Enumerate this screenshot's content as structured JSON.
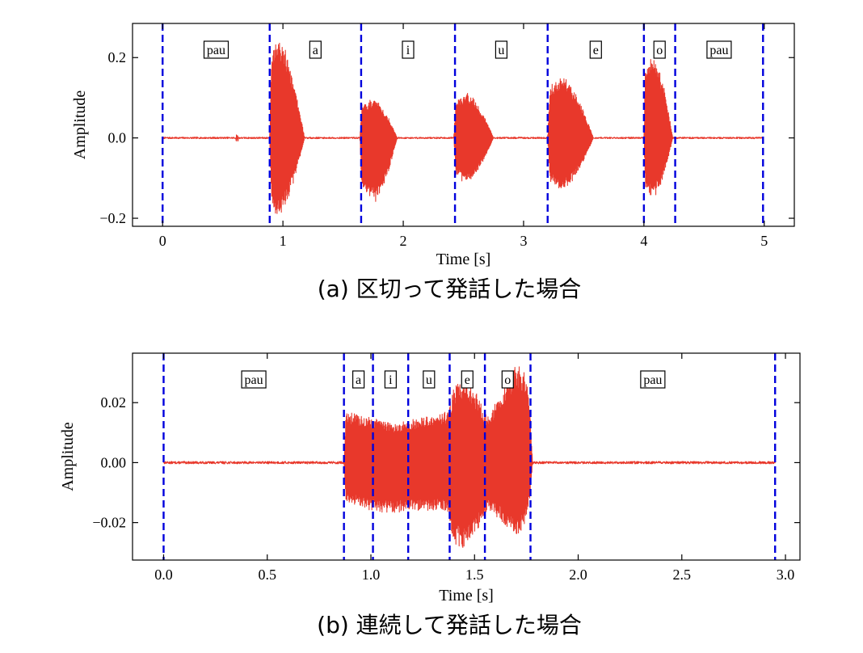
{
  "chart_data": [
    {
      "type": "line",
      "panel": "a",
      "caption": "(a) 区切って発話した場合",
      "xlabel": "Time [s]",
      "ylabel": "Amplitude",
      "xlim": [
        -0.25,
        5.25
      ],
      "ylim": [
        -0.22,
        0.285
      ],
      "xticks": [
        0,
        1,
        2,
        3,
        4,
        5
      ],
      "yticks": [
        -0.2,
        0.0,
        0.2
      ],
      "xtick_labels": [
        "0",
        "1",
        "2",
        "3",
        "4",
        "5"
      ],
      "ytick_labels": [
        "−0.2",
        "0.0",
        "0.2"
      ],
      "grid": false,
      "colors": {
        "waveform": "#e8382b",
        "boundary": "#0000dd"
      },
      "boundaries": [
        0.0,
        0.89,
        1.65,
        2.43,
        3.2,
        4.0,
        4.26,
        4.99
      ],
      "segments": [
        {
          "label": "pau",
          "center": 0.445
        },
        {
          "label": "a",
          "center": 1.27
        },
        {
          "label": "i",
          "center": 2.04
        },
        {
          "label": "u",
          "center": 2.815
        },
        {
          "label": "e",
          "center": 3.6
        },
        {
          "label": "o",
          "center": 4.13
        },
        {
          "label": "pau",
          "center": 4.625
        }
      ],
      "bursts": [
        {
          "start": 0.89,
          "end": 1.18,
          "max": 0.265,
          "min": -0.2,
          "peak": 0.2
        },
        {
          "start": 1.64,
          "end": 1.95,
          "max": 0.1,
          "min": -0.165,
          "peak": 0.35
        },
        {
          "start": 2.42,
          "end": 2.75,
          "max": 0.115,
          "min": -0.115,
          "peak": 0.3
        },
        {
          "start": 3.2,
          "end": 3.58,
          "max": 0.155,
          "min": -0.135,
          "peak": 0.3
        },
        {
          "start": 4.0,
          "end": 4.24,
          "max": 0.21,
          "min": -0.155,
          "peak": 0.3
        }
      ],
      "noise": {
        "amplitude": 0.002,
        "blip_at": 0.62,
        "blip_amplitude": 0.008
      }
    },
    {
      "type": "line",
      "panel": "b",
      "caption": "(b) 連続して発話した場合",
      "xlabel": "Time [s]",
      "ylabel": "Amplitude",
      "xlim": [
        -0.15,
        3.07
      ],
      "ylim": [
        -0.0325,
        0.0365
      ],
      "xticks": [
        0.0,
        0.5,
        1.0,
        1.5,
        2.0,
        2.5,
        3.0
      ],
      "yticks": [
        -0.02,
        0.0,
        0.02
      ],
      "xtick_labels": [
        "0.0",
        "0.5",
        "1.0",
        "1.5",
        "2.0",
        "2.5",
        "3.0"
      ],
      "ytick_labels": [
        "−0.02",
        "0.00",
        "0.02"
      ],
      "grid": false,
      "colors": {
        "waveform": "#e8382b",
        "boundary": "#0000dd"
      },
      "boundaries": [
        0.0,
        0.87,
        1.01,
        1.18,
        1.38,
        1.55,
        1.77,
        2.95
      ],
      "segments": [
        {
          "label": "pau",
          "center": 0.435
        },
        {
          "label": "a",
          "center": 0.94
        },
        {
          "label": "i",
          "center": 1.095
        },
        {
          "label": "u",
          "center": 1.28
        },
        {
          "label": "e",
          "center": 1.465
        },
        {
          "label": "o",
          "center": 1.66
        },
        {
          "label": "pau",
          "center": 2.36
        }
      ],
      "envelope": [
        {
          "t": 0.87,
          "max": 0.0,
          "min": 0.0
        },
        {
          "t": 0.88,
          "max": 0.017,
          "min": -0.013
        },
        {
          "t": 1.0,
          "max": 0.015,
          "min": -0.016
        },
        {
          "t": 1.1,
          "max": 0.013,
          "min": -0.017
        },
        {
          "t": 1.18,
          "max": 0.014,
          "min": -0.016
        },
        {
          "t": 1.3,
          "max": 0.016,
          "min": -0.016
        },
        {
          "t": 1.37,
          "max": 0.017,
          "min": -0.016
        },
        {
          "t": 1.4,
          "max": 0.025,
          "min": -0.027
        },
        {
          "t": 1.45,
          "max": 0.029,
          "min": -0.029
        },
        {
          "t": 1.52,
          "max": 0.022,
          "min": -0.022
        },
        {
          "t": 1.56,
          "max": 0.015,
          "min": -0.016
        },
        {
          "t": 1.62,
          "max": 0.022,
          "min": -0.019
        },
        {
          "t": 1.7,
          "max": 0.033,
          "min": -0.025
        },
        {
          "t": 1.75,
          "max": 0.03,
          "min": -0.02
        },
        {
          "t": 1.77,
          "max": 0.015,
          "min": -0.01
        },
        {
          "t": 1.78,
          "max": 0.0,
          "min": 0.0
        }
      ],
      "noise": {
        "amplitude": 0.0004
      }
    }
  ]
}
